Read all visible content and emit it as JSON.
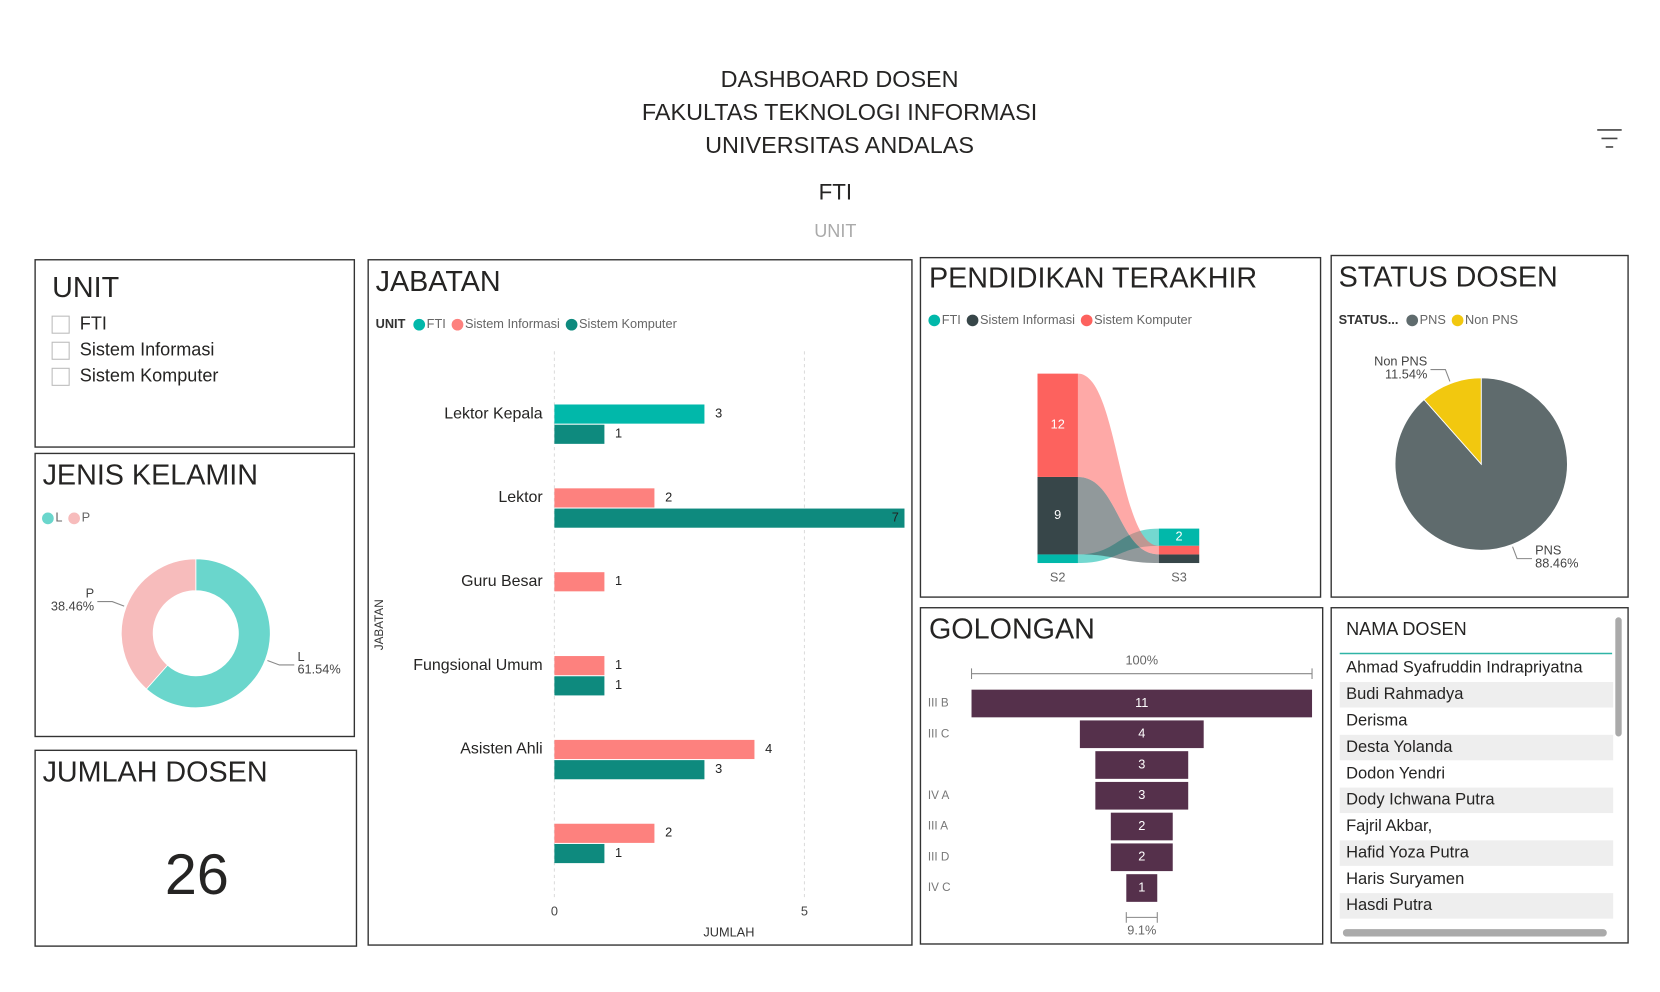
{
  "header": {
    "title_lines": [
      "DASHBOARD DOSEN",
      "FAKULTAS TEKNOLOGI INFORMASI",
      "UNIVERSITAS ANDALAS"
    ],
    "unit_filter": {
      "value": "FTI",
      "label": "UNIT"
    }
  },
  "unit_slicer": {
    "title": "UNIT",
    "items": [
      "FTI",
      "Sistem Informasi",
      "Sistem Komputer"
    ]
  },
  "jumlah_dosen": {
    "title": "JUMLAH DOSEN",
    "value": 26
  },
  "nama_dosen": {
    "header": "NAMA DOSEN",
    "rows": [
      "Ahmad Syafruddin Indrapriyatna",
      "Budi Rahmadya",
      "Derisma",
      "Desta Yolanda",
      "Dodon Yendri",
      "Dody Ichwana Putra",
      "Fajril Akbar,",
      "Hafid Yoza Putra",
      "Haris Suryamen",
      "Hasdi Putra"
    ]
  },
  "chart_data": [
    {
      "type": "donut",
      "title": "JENIS KELAMIN",
      "categories": [
        "L",
        "P"
      ],
      "values": [
        61.54,
        38.46
      ],
      "value_labels": [
        "61.54%",
        "38.46%"
      ],
      "colors": [
        "#6ad6cc",
        "#f7bcbc"
      ]
    },
    {
      "type": "bar",
      "orientation": "horizontal",
      "title": "JABATAN",
      "legend_title": "UNIT",
      "categories": [
        "Lektor Kepala",
        "Lektor",
        "Guru Besar",
        "Fungsional Umum",
        "Asisten Ahli",
        null
      ],
      "series": [
        {
          "name": "FTI",
          "color": "#01b8aa",
          "values": [
            3,
            null,
            null,
            null,
            null,
            null
          ]
        },
        {
          "name": "Sistem Informasi",
          "color": "#fd817e",
          "values": [
            null,
            2,
            1,
            1,
            4,
            2
          ]
        },
        {
          "name": "Sistem Komputer",
          "color": "#0e8a7e",
          "values": [
            1,
            7,
            null,
            1,
            3,
            1
          ]
        }
      ],
      "xlim": [
        0,
        7
      ],
      "xticks": [
        0,
        5
      ],
      "xlabel": "JUMLAH",
      "ylabel": "JABATAN",
      "grid": true
    },
    {
      "type": "ribbon",
      "title": "PENDIDIKAN TERAKHIR",
      "categories": [
        "S2",
        "S3"
      ],
      "series": [
        {
          "name": "FTI",
          "color": "#01b8aa",
          "values": [
            1,
            2
          ]
        },
        {
          "name": "Sistem Informasi",
          "color": "#374649",
          "values": [
            9,
            1
          ]
        },
        {
          "name": "Sistem Komputer",
          "color": "#fd625e",
          "values": [
            12,
            1
          ]
        }
      ]
    },
    {
      "type": "pie",
      "title": "STATUS DOSEN",
      "legend_title": "STATUS...",
      "categories": [
        "PNS",
        "Non PNS"
      ],
      "values": [
        88.46,
        11.54
      ],
      "value_labels": [
        "88.46%",
        "11.54%"
      ],
      "colors": [
        "#5f6b6d",
        "#f2c80f"
      ]
    },
    {
      "type": "funnel",
      "title": "GOLONGAN",
      "categories": [
        "III B",
        "III C",
        null,
        "IV A",
        "III A",
        "III D",
        "IV C"
      ],
      "values": [
        11,
        4,
        3,
        3,
        2,
        2,
        1
      ],
      "color": "#55304b",
      "conversion_labels": [
        {
          "value": 100,
          "label": "100%"
        },
        {
          "value": 9.1,
          "label": "9.1%"
        }
      ]
    }
  ]
}
